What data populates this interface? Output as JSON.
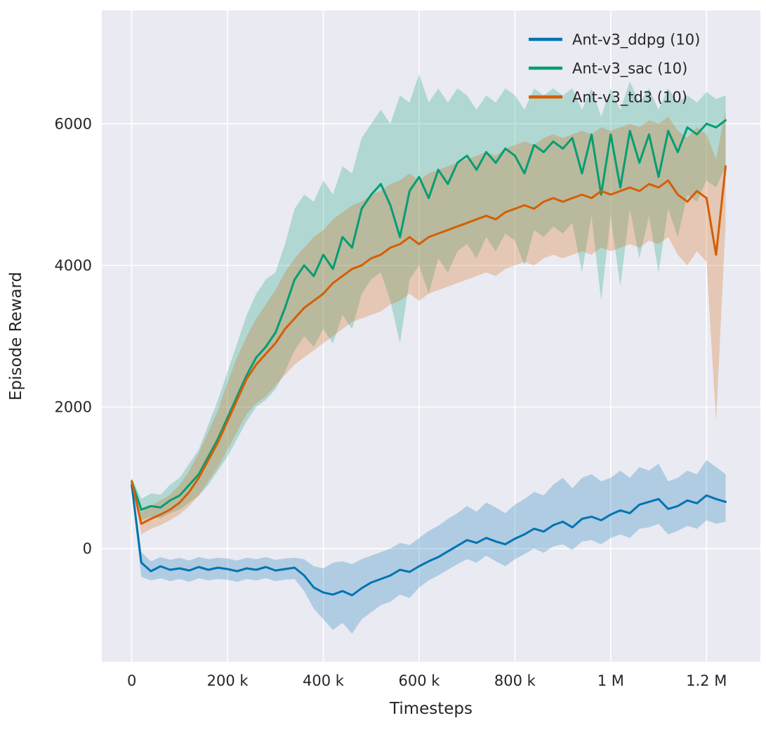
{
  "figure": {
    "background": "#ffffff",
    "axes_background": "#eaeaf2",
    "grid_color": "#ffffff",
    "text_color": "#262626",
    "band_opacity": 0.25
  },
  "chart_data": {
    "type": "line",
    "title": "",
    "xlabel": "Timesteps",
    "ylabel": "Episode Reward",
    "xlim": [
      -62500,
      1312500
    ],
    "ylim": [
      -1600,
      7600
    ],
    "grid": true,
    "legend_position": "upper right",
    "xticks": [
      {
        "value": 0,
        "label": "0"
      },
      {
        "value": 200000,
        "label": "200 k"
      },
      {
        "value": 400000,
        "label": "400 k"
      },
      {
        "value": 600000,
        "label": "600 k"
      },
      {
        "value": 800000,
        "label": "800 k"
      },
      {
        "value": 1000000,
        "label": "1 M"
      },
      {
        "value": 1200000,
        "label": "1.2 M"
      }
    ],
    "yticks": [
      {
        "value": 0,
        "label": "0"
      },
      {
        "value": 2000,
        "label": "2000"
      },
      {
        "value": 4000,
        "label": "4000"
      },
      {
        "value": 6000,
        "label": "6000"
      }
    ],
    "x": [
      0,
      20000,
      40000,
      60000,
      80000,
      100000,
      120000,
      140000,
      160000,
      180000,
      200000,
      220000,
      240000,
      260000,
      280000,
      300000,
      320000,
      340000,
      360000,
      380000,
      400000,
      420000,
      440000,
      460000,
      480000,
      500000,
      520000,
      540000,
      560000,
      580000,
      600000,
      620000,
      640000,
      660000,
      680000,
      700000,
      720000,
      740000,
      760000,
      780000,
      800000,
      820000,
      840000,
      860000,
      880000,
      900000,
      920000,
      940000,
      960000,
      980000,
      1000000,
      1020000,
      1040000,
      1060000,
      1080000,
      1100000,
      1120000,
      1140000,
      1160000,
      1180000,
      1200000,
      1220000,
      1240000
    ],
    "series": [
      {
        "name": "Ant-v3_ddpg (10)",
        "color": "#0173b2",
        "values": [
          900,
          -200,
          -320,
          -250,
          -300,
          -280,
          -310,
          -260,
          -300,
          -270,
          -290,
          -320,
          -280,
          -300,
          -260,
          -310,
          -290,
          -270,
          -380,
          -550,
          -620,
          -650,
          -600,
          -660,
          -560,
          -480,
          -430,
          -380,
          -300,
          -330,
          -250,
          -180,
          -120,
          -40,
          40,
          120,
          80,
          150,
          100,
          60,
          140,
          200,
          280,
          240,
          330,
          380,
          300,
          420,
          450,
          400,
          480,
          540,
          500,
          620,
          660,
          700,
          560,
          600,
          680,
          640,
          750,
          700,
          660
        ],
        "band_low": [
          800,
          -400,
          -450,
          -420,
          -460,
          -430,
          -470,
          -420,
          -450,
          -430,
          -440,
          -470,
          -430,
          -450,
          -420,
          -460,
          -440,
          -430,
          -600,
          -850,
          -1000,
          -1150,
          -1050,
          -1200,
          -1000,
          -900,
          -800,
          -750,
          -650,
          -700,
          -550,
          -450,
          -380,
          -300,
          -220,
          -150,
          -200,
          -100,
          -180,
          -250,
          -150,
          -80,
          0,
          -60,
          30,
          60,
          -20,
          100,
          120,
          60,
          150,
          200,
          150,
          280,
          300,
          350,
          200,
          250,
          320,
          280,
          400,
          350,
          380
        ],
        "band_high": [
          1000,
          -50,
          -180,
          -120,
          -160,
          -130,
          -170,
          -120,
          -150,
          -130,
          -140,
          -170,
          -130,
          -150,
          -120,
          -160,
          -140,
          -130,
          -150,
          -250,
          -280,
          -200,
          -180,
          -220,
          -150,
          -100,
          -50,
          0,
          80,
          50,
          150,
          250,
          320,
          420,
          500,
          600,
          520,
          650,
          580,
          500,
          620,
          700,
          800,
          750,
          900,
          1000,
          850,
          1000,
          1050,
          950,
          1000,
          1100,
          1000,
          1150,
          1100,
          1200,
          950,
          1000,
          1100,
          1050,
          1250,
          1150,
          1050
        ]
      },
      {
        "name": "Ant-v3_sac (10)",
        "color": "#029e73",
        "values": [
          950,
          550,
          600,
          580,
          680,
          750,
          900,
          1050,
          1300,
          1550,
          1850,
          2150,
          2450,
          2700,
          2850,
          3050,
          3400,
          3800,
          4000,
          3850,
          4150,
          3950,
          4400,
          4250,
          4800,
          5000,
          5150,
          4850,
          4400,
          5050,
          5250,
          4950,
          5350,
          5150,
          5450,
          5550,
          5350,
          5600,
          5450,
          5650,
          5550,
          5300,
          5700,
          5600,
          5750,
          5650,
          5800,
          5300,
          5850,
          5000,
          5850,
          5100,
          5900,
          5450,
          5850,
          5250,
          5900,
          5600,
          5950,
          5850,
          6000,
          5950,
          6050
        ],
        "band_low": [
          900,
          400,
          450,
          430,
          500,
          550,
          650,
          750,
          900,
          1100,
          1300,
          1550,
          1800,
          2000,
          2100,
          2250,
          2500,
          2800,
          3000,
          2850,
          3100,
          2900,
          3300,
          3100,
          3600,
          3800,
          3900,
          3500,
          2900,
          3800,
          4000,
          3600,
          4100,
          3900,
          4200,
          4300,
          4100,
          4400,
          4200,
          4450,
          4350,
          4000,
          4500,
          4400,
          4550,
          4450,
          4600,
          3900,
          4700,
          3500,
          4700,
          3700,
          4800,
          4100,
          4700,
          3900,
          4800,
          4400,
          5000,
          4900,
          5200,
          5100,
          5400
        ],
        "band_high": [
          1000,
          700,
          780,
          760,
          900,
          1000,
          1200,
          1400,
          1750,
          2100,
          2500,
          2900,
          3300,
          3600,
          3800,
          3900,
          4300,
          4800,
          5000,
          4900,
          5200,
          5000,
          5400,
          5300,
          5800,
          6000,
          6200,
          6000,
          6400,
          6300,
          6700,
          6300,
          6500,
          6300,
          6500,
          6400,
          6200,
          6400,
          6300,
          6500,
          6400,
          6200,
          6500,
          6400,
          6500,
          6400,
          6500,
          6200,
          6500,
          6100,
          6500,
          6200,
          6600,
          6300,
          6500,
          6200,
          6500,
          6300,
          6400,
          6300,
          6450,
          6350,
          6400
        ]
      },
      {
        "name": "Ant-v3_td3 (10)",
        "color": "#d55e00",
        "values": [
          950,
          350,
          420,
          480,
          550,
          650,
          800,
          1000,
          1250,
          1500,
          1800,
          2100,
          2400,
          2600,
          2750,
          2900,
          3100,
          3250,
          3400,
          3500,
          3600,
          3750,
          3850,
          3950,
          4000,
          4100,
          4150,
          4250,
          4300,
          4400,
          4300,
          4400,
          4450,
          4500,
          4550,
          4600,
          4650,
          4700,
          4650,
          4750,
          4800,
          4850,
          4800,
          4900,
          4950,
          4900,
          4950,
          5000,
          4950,
          5050,
          5000,
          5050,
          5100,
          5050,
          5150,
          5100,
          5200,
          5000,
          4900,
          5050,
          4950,
          4150,
          5400
        ],
        "band_low": [
          900,
          200,
          280,
          330,
          400,
          480,
          600,
          750,
          950,
          1150,
          1400,
          1650,
          1900,
          2050,
          2150,
          2300,
          2450,
          2600,
          2700,
          2800,
          2900,
          3000,
          3100,
          3200,
          3250,
          3300,
          3350,
          3450,
          3500,
          3600,
          3500,
          3600,
          3650,
          3700,
          3750,
          3800,
          3850,
          3900,
          3850,
          3950,
          4000,
          4050,
          4000,
          4100,
          4150,
          4100,
          4150,
          4200,
          4150,
          4250,
          4200,
          4250,
          4300,
          4250,
          4350,
          4300,
          4400,
          4150,
          4000,
          4200,
          4050,
          1800,
          4600
        ],
        "band_high": [
          1000,
          520,
          600,
          680,
          760,
          900,
          1100,
          1350,
          1650,
          1950,
          2350,
          2700,
          3000,
          3250,
          3450,
          3650,
          3900,
          4100,
          4250,
          4400,
          4500,
          4650,
          4750,
          4850,
          4900,
          5000,
          5050,
          5150,
          5200,
          5300,
          5200,
          5300,
          5350,
          5400,
          5450,
          5500,
          5550,
          5600,
          5550,
          5650,
          5700,
          5750,
          5700,
          5800,
          5850,
          5800,
          5850,
          5900,
          5850,
          5950,
          5900,
          5950,
          6000,
          5950,
          6050,
          6000,
          6100,
          5900,
          5800,
          5950,
          5850,
          5500,
          6200
        ]
      }
    ]
  }
}
